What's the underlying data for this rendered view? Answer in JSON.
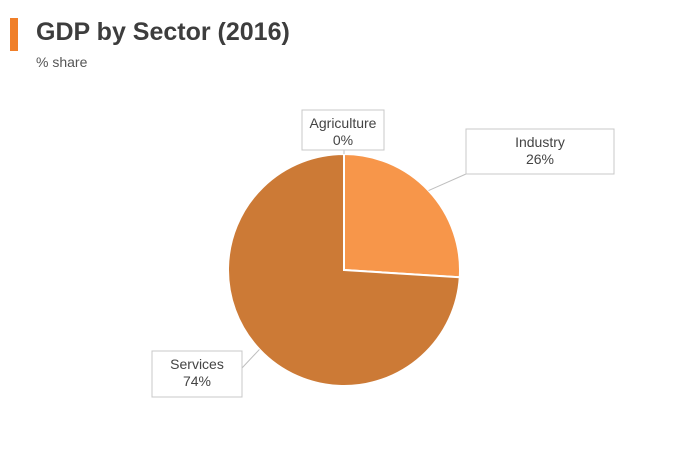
{
  "header": {
    "title": "GDP by Sector (2016)",
    "subtitle": "% share",
    "accent_color": "#f07f29"
  },
  "chart_data": {
    "type": "pie",
    "title": "GDP by Sector (2016)",
    "subtitle": "% share",
    "slices": [
      {
        "name": "Agriculture",
        "value": 0,
        "label": "0%",
        "color": "#f7964a"
      },
      {
        "name": "Industry",
        "value": 26,
        "label": "26%",
        "color": "#f7964a"
      },
      {
        "name": "Services",
        "value": 74,
        "label": "74%",
        "color": "#cc7a36"
      }
    ],
    "legend": "none"
  }
}
